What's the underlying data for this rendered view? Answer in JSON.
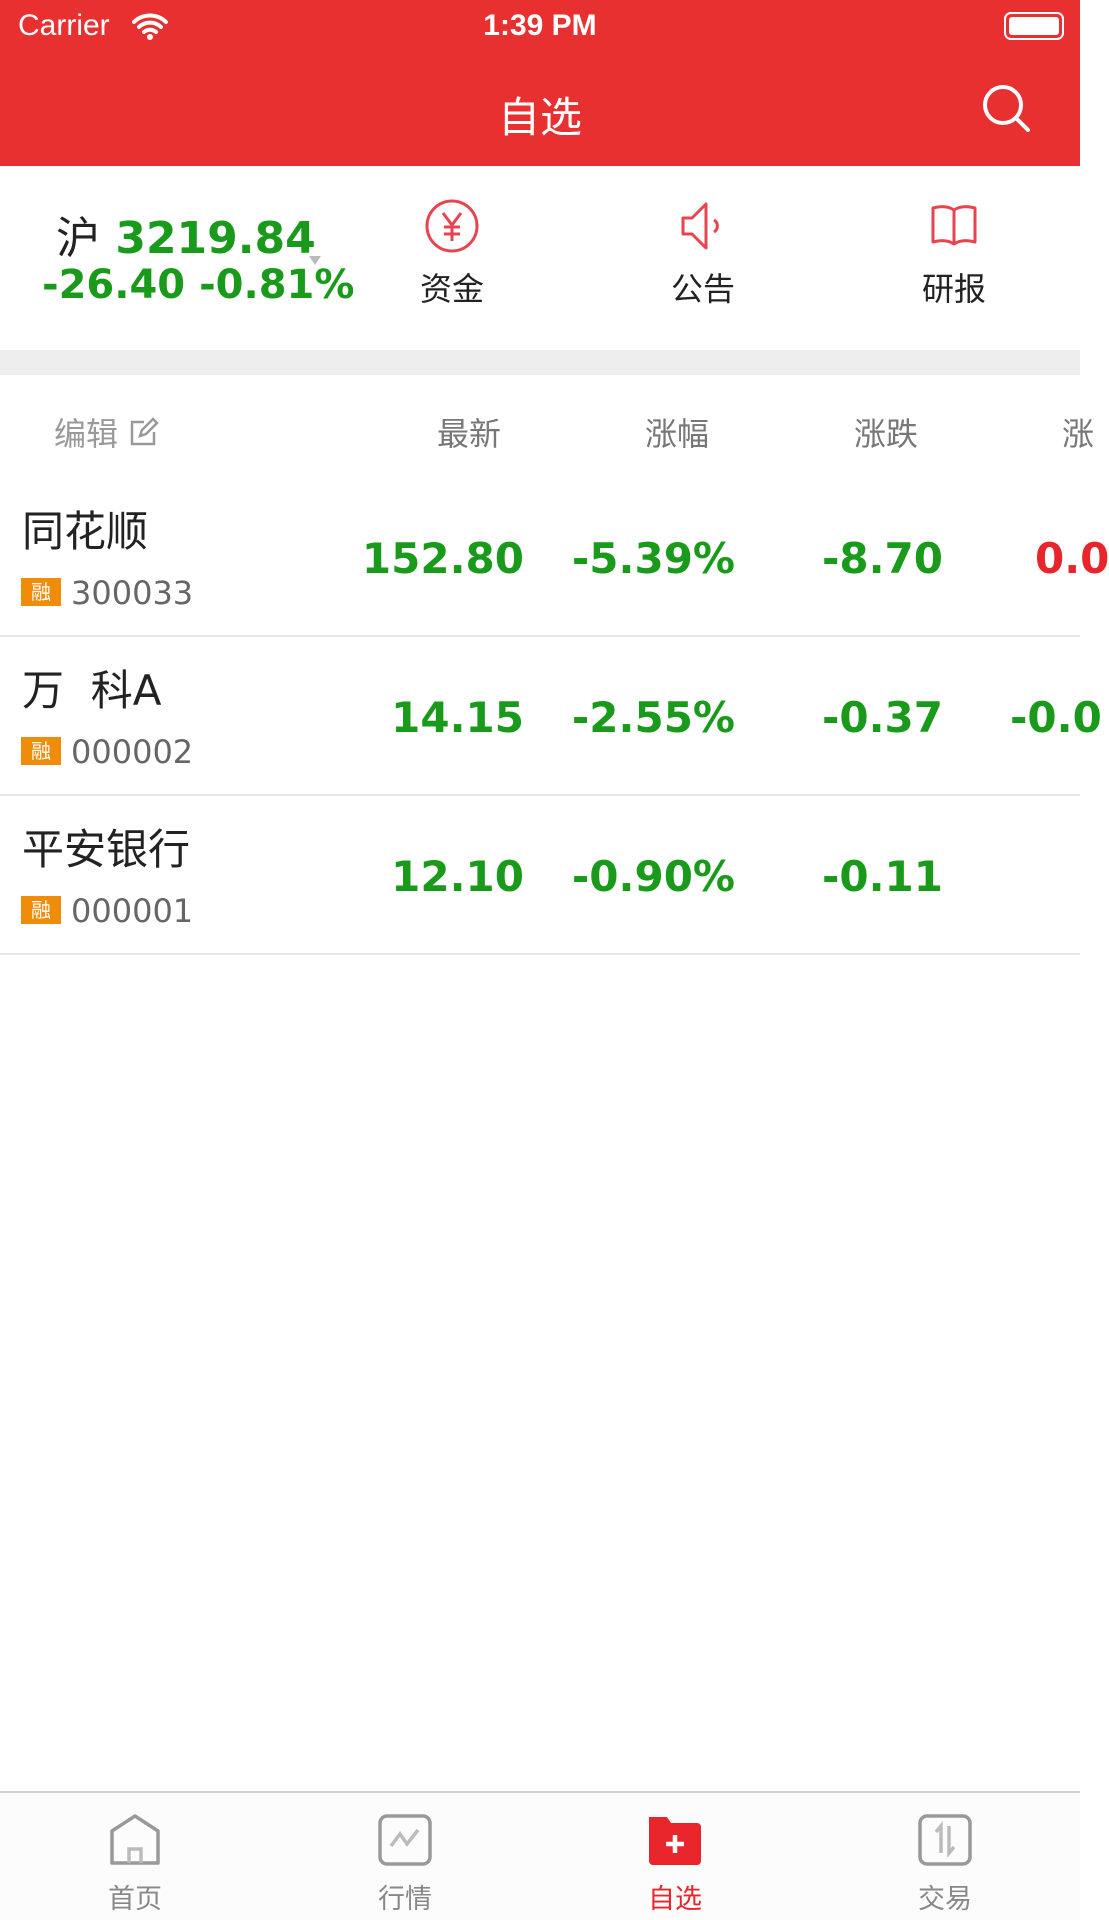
{
  "status_bar": {
    "carrier": "Carrier",
    "time": "1:39 PM"
  },
  "header": {
    "title": "自选"
  },
  "index": {
    "name": "沪",
    "value": "3219.84",
    "change": "-26.40",
    "change_pct": "-0.81%"
  },
  "quick_links": [
    {
      "label": "资金",
      "icon": "yuan-circle-icon"
    },
    {
      "label": "公告",
      "icon": "speaker-icon"
    },
    {
      "label": "研报",
      "icon": "book-icon"
    }
  ],
  "table": {
    "edit_label": "编辑",
    "columns": [
      "最新",
      "涨幅",
      "涨跌",
      "涨"
    ],
    "rows": [
      {
        "name": "同花顺",
        "badge": "融",
        "code": "300033",
        "latest": "152.80",
        "pct": "-5.39%",
        "change": "-8.70",
        "extra": "0.0"
      },
      {
        "name": "万  科A",
        "badge": "融",
        "code": "000002",
        "latest": "14.15",
        "pct": "-2.55%",
        "change": "-0.37",
        "extra": "-0.0"
      },
      {
        "name": "平安银行",
        "badge": "融",
        "code": "000001",
        "latest": "12.10",
        "pct": "-0.90%",
        "change": "-0.11",
        "extra": ""
      }
    ]
  },
  "colors": {
    "brand": "#e83030",
    "down": "#1a9a1a",
    "up": "#e8252a",
    "badge": "#ef8c0a"
  },
  "tabbar": {
    "items": [
      {
        "label": "首页"
      },
      {
        "label": "行情"
      },
      {
        "label": "自选",
        "active": true
      },
      {
        "label": "交易"
      }
    ]
  }
}
